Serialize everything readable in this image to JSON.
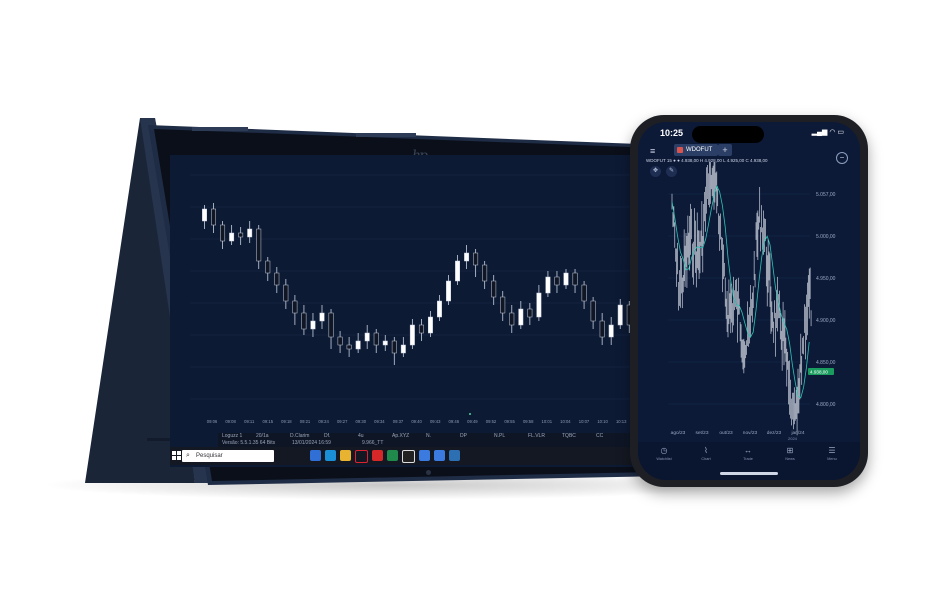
{
  "laptop": {
    "taskbar": {
      "search_placeholder": "Pesquisar",
      "apps": [
        "windows-start",
        "chrome",
        "edge",
        "file-explorer",
        "opera",
        "foxit",
        "excel",
        "dollar-app",
        "chrome",
        "chrome",
        "screenshot"
      ]
    },
    "statusbar": {
      "row1": [
        "Loguzz 1",
        "20/1a",
        "D.Clarim",
        "Df.",
        "4u",
        "Ap.XYZ",
        "N.",
        "DP",
        "N.PL",
        "FL.VLR",
        "TQBC",
        "CC",
        "TC"
      ],
      "row2": [
        "Versão: 5.5.1.35 64 Bits",
        "13/01/2024 16:59",
        "9.966_TT"
      ]
    },
    "time_axis": [
      "09:06",
      "09:08",
      "09:11",
      "09:15",
      "09:18",
      "09:21",
      "09:24",
      "09:27",
      "09:30",
      "09:34",
      "09:37",
      "09:40",
      "09:43",
      "09:46",
      "09:49",
      "09:52",
      "09:55",
      "09:58",
      "10:01",
      "10:04",
      "10:07",
      "10:10",
      "10:13",
      "10:16",
      "10:19",
      "10:22"
    ],
    "chart_candles": [
      {
        "o": 112,
        "c": 118,
        "h": 120,
        "l": 108
      },
      {
        "o": 118,
        "c": 110,
        "h": 121,
        "l": 106
      },
      {
        "o": 110,
        "c": 102,
        "h": 112,
        "l": 98
      },
      {
        "o": 102,
        "c": 106,
        "h": 110,
        "l": 100
      },
      {
        "o": 106,
        "c": 104,
        "h": 109,
        "l": 100
      },
      {
        "o": 104,
        "c": 108,
        "h": 112,
        "l": 101
      },
      {
        "o": 108,
        "c": 92,
        "h": 110,
        "l": 88
      },
      {
        "o": 92,
        "c": 86,
        "h": 94,
        "l": 82
      },
      {
        "o": 86,
        "c": 80,
        "h": 89,
        "l": 76
      },
      {
        "o": 80,
        "c": 72,
        "h": 83,
        "l": 68
      },
      {
        "o": 72,
        "c": 66,
        "h": 75,
        "l": 60
      },
      {
        "o": 66,
        "c": 58,
        "h": 70,
        "l": 55
      },
      {
        "o": 58,
        "c": 62,
        "h": 66,
        "l": 54
      },
      {
        "o": 62,
        "c": 66,
        "h": 70,
        "l": 58
      },
      {
        "o": 66,
        "c": 54,
        "h": 68,
        "l": 48
      },
      {
        "o": 54,
        "c": 50,
        "h": 57,
        "l": 46
      },
      {
        "o": 50,
        "c": 48,
        "h": 54,
        "l": 44
      },
      {
        "o": 48,
        "c": 52,
        "h": 56,
        "l": 46
      },
      {
        "o": 52,
        "c": 56,
        "h": 60,
        "l": 48
      },
      {
        "o": 56,
        "c": 50,
        "h": 58,
        "l": 46
      },
      {
        "o": 50,
        "c": 52,
        "h": 55,
        "l": 47
      },
      {
        "o": 52,
        "c": 46,
        "h": 54,
        "l": 40
      },
      {
        "o": 46,
        "c": 50,
        "h": 54,
        "l": 44
      },
      {
        "o": 50,
        "c": 60,
        "h": 63,
        "l": 48
      },
      {
        "o": 60,
        "c": 56,
        "h": 63,
        "l": 52
      },
      {
        "o": 56,
        "c": 64,
        "h": 67,
        "l": 54
      },
      {
        "o": 64,
        "c": 72,
        "h": 75,
        "l": 62
      },
      {
        "o": 72,
        "c": 82,
        "h": 85,
        "l": 70
      },
      {
        "o": 82,
        "c": 92,
        "h": 95,
        "l": 80
      },
      {
        "o": 92,
        "c": 96,
        "h": 100,
        "l": 88
      },
      {
        "o": 96,
        "c": 90,
        "h": 98,
        "l": 84
      },
      {
        "o": 90,
        "c": 82,
        "h": 92,
        "l": 78
      },
      {
        "o": 82,
        "c": 74,
        "h": 85,
        "l": 70
      },
      {
        "o": 74,
        "c": 66,
        "h": 77,
        "l": 62
      },
      {
        "o": 66,
        "c": 60,
        "h": 70,
        "l": 56
      },
      {
        "o": 60,
        "c": 68,
        "h": 72,
        "l": 58
      },
      {
        "o": 68,
        "c": 64,
        "h": 71,
        "l": 60
      },
      {
        "o": 64,
        "c": 76,
        "h": 80,
        "l": 62
      },
      {
        "o": 76,
        "c": 84,
        "h": 87,
        "l": 74
      },
      {
        "o": 84,
        "c": 80,
        "h": 87,
        "l": 76
      },
      {
        "o": 80,
        "c": 86,
        "h": 88,
        "l": 78
      },
      {
        "o": 86,
        "c": 80,
        "h": 88,
        "l": 76
      },
      {
        "o": 80,
        "c": 72,
        "h": 82,
        "l": 68
      },
      {
        "o": 72,
        "c": 62,
        "h": 74,
        "l": 58
      },
      {
        "o": 62,
        "c": 54,
        "h": 66,
        "l": 50
      },
      {
        "o": 54,
        "c": 60,
        "h": 64,
        "l": 50
      },
      {
        "o": 60,
        "c": 70,
        "h": 73,
        "l": 58
      },
      {
        "o": 70,
        "c": 60,
        "h": 72,
        "l": 56
      },
      {
        "o": 60,
        "c": 66,
        "h": 70,
        "l": 56
      },
      {
        "o": 66,
        "c": 56,
        "h": 68,
        "l": 52
      },
      {
        "o": 56,
        "c": 52,
        "h": 60,
        "l": 48
      },
      {
        "o": 52,
        "c": 46,
        "h": 55,
        "l": 42
      },
      {
        "o": 46,
        "c": 56,
        "h": 60,
        "l": 44
      },
      {
        "o": 56,
        "c": 66,
        "h": 70,
        "l": 54
      }
    ]
  },
  "phone": {
    "time": "10:25",
    "status_icons": "▂▄▆ ◠ ▭",
    "symbol": "WDOFUT",
    "badge": "",
    "ohlc_text": "WDOFUT 15 ● ● 4.938,00 H 4.928,00 L 4.925,00 C 4.938,00",
    "price_labels": [
      "5.057,00",
      "5.000,00",
      "4.950,00",
      "4.900,00",
      "4.850,00",
      "4.800,00"
    ],
    "date_labels": [
      "ago/23",
      "set/23",
      "out/23",
      "nov/23",
      "dez/23",
      "jan/24"
    ],
    "current_price": "4.938,00",
    "year_label": "2024",
    "nav": [
      {
        "icon": "◷",
        "label": "Watchlist"
      },
      {
        "icon": "⌇",
        "label": "Chart"
      },
      {
        "icon": "↔",
        "label": "Trade"
      },
      {
        "icon": "⊞",
        "label": "News"
      },
      {
        "icon": "☰",
        "label": "Menu"
      }
    ]
  },
  "colors": {
    "chart_bg": "#0d1a34",
    "candle_up": "#ffffff",
    "candle_down": "#101623",
    "wick": "#c8d0e0",
    "ma_line": "#2ec4b6"
  }
}
